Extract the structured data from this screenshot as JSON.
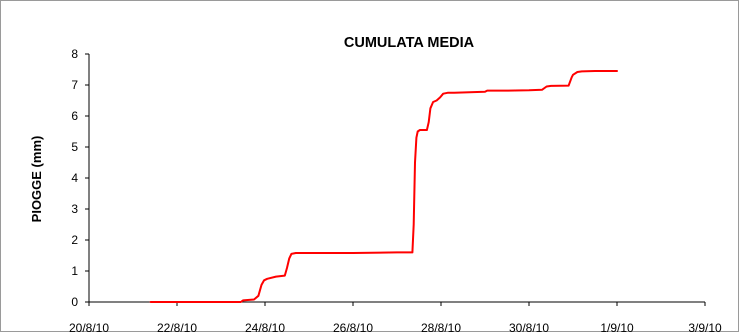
{
  "chart_data": {
    "type": "line",
    "title": "CUMULATA MEDIA",
    "xlabel": "",
    "ylabel": "PIOGGE (mm)",
    "ylim": [
      0,
      8
    ],
    "yticks": [
      0,
      1,
      2,
      3,
      4,
      5,
      6,
      7,
      8
    ],
    "xlim_days": [
      0,
      14
    ],
    "xticks": [
      {
        "day": 0,
        "label": "20/8/10"
      },
      {
        "day": 2,
        "label": "22/8/10"
      },
      {
        "day": 4,
        "label": "24/8/10"
      },
      {
        "day": 6,
        "label": "26/8/10"
      },
      {
        "day": 8,
        "label": "28/8/10"
      },
      {
        "day": 10,
        "label": "30/8/10"
      },
      {
        "day": 12,
        "label": "1/9/10"
      },
      {
        "day": 14,
        "label": "3/9/10"
      }
    ],
    "grid": false,
    "legend": "none",
    "series": [
      {
        "color": "#ff0000",
        "x_days": [
          1.4,
          2.0,
          3.0,
          3.45,
          3.5,
          3.75,
          3.85,
          3.92,
          3.98,
          4.05,
          4.25,
          4.45,
          4.5,
          4.55,
          4.6,
          4.7,
          5.0,
          6.0,
          7.0,
          7.35,
          7.38,
          7.41,
          7.44,
          7.47,
          7.52,
          7.6,
          7.68,
          7.72,
          7.76,
          7.82,
          7.9,
          7.98,
          8.05,
          8.15,
          8.3,
          9.0,
          9.05,
          9.5,
          10.0,
          10.3,
          10.4,
          10.5,
          10.9,
          10.97,
          11.0,
          11.1,
          11.2,
          11.5,
          12.0
        ],
        "y": [
          0,
          0,
          0,
          0,
          0.05,
          0.08,
          0.2,
          0.55,
          0.7,
          0.75,
          0.82,
          0.85,
          1.1,
          1.4,
          1.55,
          1.58,
          1.58,
          1.58,
          1.6,
          1.6,
          2.5,
          4.5,
          5.3,
          5.5,
          5.55,
          5.55,
          5.55,
          5.8,
          6.25,
          6.45,
          6.5,
          6.6,
          6.72,
          6.75,
          6.75,
          6.78,
          6.82,
          6.82,
          6.83,
          6.85,
          6.95,
          6.97,
          6.98,
          7.25,
          7.33,
          7.42,
          7.44,
          7.45,
          7.45
        ]
      }
    ]
  }
}
